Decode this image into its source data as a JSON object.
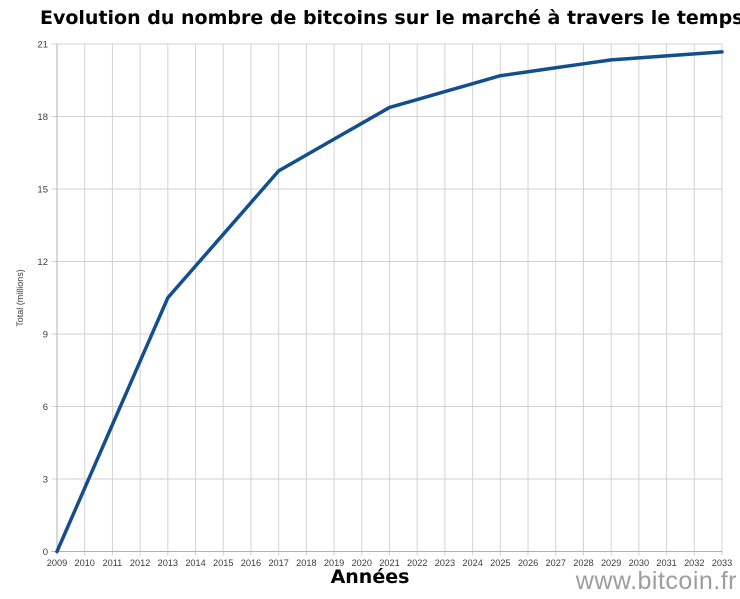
{
  "watermark": {
    "text": "www.bitcoin.fr",
    "color": "#9d9d9d"
  },
  "chart_data": {
    "type": "line",
    "title": "Evolution du nombre de bitcoins sur le marché à travers le temps",
    "xlabel": "Années",
    "ylabel": "Total (millions)",
    "x": [
      2009,
      2010,
      2011,
      2012,
      2013,
      2014,
      2015,
      2016,
      2017,
      2018,
      2019,
      2020,
      2021,
      2022,
      2023,
      2024,
      2025,
      2026,
      2027,
      2028,
      2029,
      2030,
      2031,
      2032,
      2033
    ],
    "series": [
      {
        "name": "Total (millions)",
        "color": "#134e8d",
        "values": [
          0,
          2.625,
          5.25,
          7.875,
          10.5,
          11.8125,
          13.125,
          14.4375,
          15.75,
          16.40625,
          17.0625,
          17.71875,
          18.375,
          18.703125,
          19.03125,
          19.359375,
          19.6875,
          19.8515625,
          20.015625,
          20.1796875,
          20.34375,
          20.42578125,
          20.5078125,
          20.58984375,
          20.671875
        ]
      }
    ],
    "ylim": [
      0,
      21
    ],
    "yticks": [
      0,
      3,
      6,
      9,
      12,
      15,
      18,
      21
    ],
    "grid": true,
    "legend_position": "none",
    "colors": {
      "gridline": "#d2d2d2",
      "axis": "#b0b0b0",
      "tick_label": "#3d3d3d",
      "title": "#000000"
    }
  }
}
